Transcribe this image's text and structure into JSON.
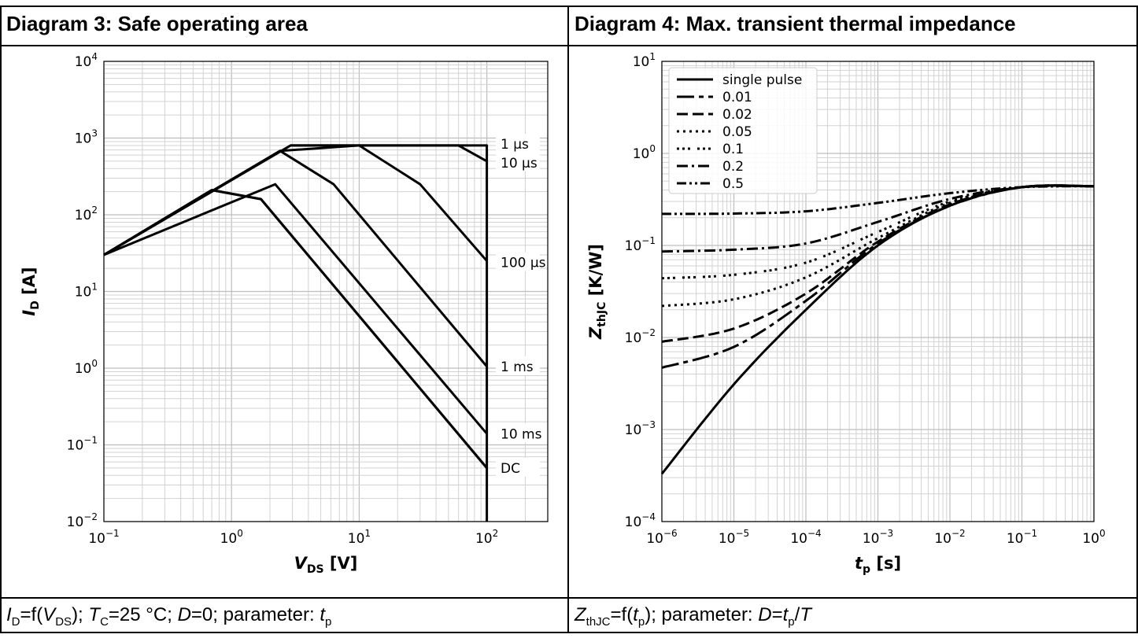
{
  "panels": {
    "left": {
      "title": "Diagram 3: Safe operating area",
      "caption": {
        "i": "I",
        "i_sub": "D",
        "f_open": "=f(",
        "v": "V",
        "v_sub": "DS",
        "rest1": "); ",
        "t": "T",
        "t_sub": "C",
        "rest2": "=25 °C; ",
        "d": "D",
        "rest3": "=0; parameter: ",
        "tp": "t",
        "tp_sub": "p"
      }
    },
    "right": {
      "title": "Diagram 4: Max. transient thermal impedance",
      "caption": {
        "z": "Z",
        "z_sub": "thJC",
        "f_open": "=f(",
        "t": "t",
        "t_sub": "p",
        "rest1": "); parameter: ",
        "d": "D",
        "eq": "=",
        "t2": "t",
        "t2_sub": "p",
        "slash": "/",
        "T": "T"
      }
    }
  },
  "chart_data": [
    {
      "type": "line",
      "xscale": "log",
      "yscale": "log",
      "xlim": [
        0.1,
        300
      ],
      "ylim": [
        0.01,
        10000
      ],
      "grid": true,
      "xlabel": "V_DS [V]",
      "ylabel": "I_D [A]",
      "xticks": [
        0.1,
        1,
        10,
        100
      ],
      "yticks": [
        0.01,
        0.1,
        1,
        10,
        100,
        1000,
        10000
      ],
      "series": [
        {
          "name": "1 µs",
          "x": [
            0.1,
            2.9,
            60,
            100
          ],
          "y": [
            30,
            800,
            800,
            500
          ]
        },
        {
          "name": "10 µs",
          "x": [
            0.1,
            2.4,
            10,
            30,
            100
          ],
          "y": [
            30,
            680,
            800,
            250,
            25
          ]
        },
        {
          "name": "100 µs",
          "x": [
            0.1,
            1.4,
            2.4,
            6.3,
            100
          ],
          "y": [
            30,
            400,
            680,
            250,
            1.05
          ]
        },
        {
          "name": "1 ms",
          "x": [
            0.1,
            2.2,
            100
          ],
          "y": [
            30,
            250,
            0.14
          ]
        },
        {
          "name": "10 ms",
          "x": [
            0.1,
            0.7,
            1.7,
            100
          ],
          "y": [
            30,
            210,
            160,
            0.05
          ]
        },
        {
          "name": "DC",
          "x": [
            0.1,
            0.7,
            1.7,
            100
          ],
          "y": [
            30,
            210,
            160,
            0.05
          ]
        }
      ],
      "boundary": {
        "x": [
          2.9,
          100,
          100,
          100
        ],
        "y": [
          800,
          800,
          0.05,
          0.01
        ]
      },
      "annotations": [
        "1 µs",
        "10 µs",
        "100 µs",
        "1 ms",
        "10 ms",
        "DC"
      ]
    },
    {
      "type": "line",
      "xscale": "log",
      "yscale": "log",
      "xlim": [
        1e-06,
        1
      ],
      "ylim": [
        0.0001,
        10
      ],
      "grid": true,
      "xlabel": "t_p [s]",
      "ylabel": "Z_thJC [K/W]",
      "xticks": [
        1e-06,
        1e-05,
        0.0001,
        0.001,
        0.01,
        0.1,
        1
      ],
      "yticks": [
        0.0001,
        0.001,
        0.01,
        0.1,
        1,
        10
      ],
      "legend": "top-left",
      "series": [
        {
          "name": "single pulse",
          "x": [
            1e-06,
            1e-05,
            0.0001,
            0.001,
            0.01,
            0.1,
            1
          ],
          "y": [
            0.00033,
            0.0031,
            0.02,
            0.1,
            0.27,
            0.43,
            0.44
          ]
        },
        {
          "name": "0.01",
          "x": [
            1e-06,
            1e-05,
            0.0001,
            0.001,
            0.01,
            0.1,
            1
          ],
          "y": [
            0.0047,
            0.0079,
            0.025,
            0.105,
            0.27,
            0.43,
            0.44
          ]
        },
        {
          "name": "0.02",
          "x": [
            1e-06,
            1e-05,
            0.0001,
            0.001,
            0.01,
            0.1,
            1
          ],
          "y": [
            0.009,
            0.0125,
            0.03,
            0.11,
            0.28,
            0.43,
            0.44
          ]
        },
        {
          "name": "0.05",
          "x": [
            1e-06,
            1e-05,
            0.0001,
            0.001,
            0.01,
            0.1,
            1
          ],
          "y": [
            0.022,
            0.026,
            0.045,
            0.12,
            0.29,
            0.43,
            0.44
          ]
        },
        {
          "name": "0.1",
          "x": [
            1e-06,
            1e-05,
            0.0001,
            0.001,
            0.01,
            0.1,
            1
          ],
          "y": [
            0.044,
            0.048,
            0.065,
            0.14,
            0.3,
            0.43,
            0.44
          ]
        },
        {
          "name": "0.2",
          "x": [
            1e-06,
            1e-05,
            0.0001,
            0.001,
            0.01,
            0.1,
            1
          ],
          "y": [
            0.086,
            0.09,
            0.105,
            0.18,
            0.32,
            0.43,
            0.44
          ]
        },
        {
          "name": "0.5",
          "x": [
            1e-06,
            1e-05,
            0.0001,
            0.001,
            0.01,
            0.1,
            1
          ],
          "y": [
            0.22,
            0.222,
            0.235,
            0.29,
            0.37,
            0.43,
            0.44
          ]
        }
      ]
    }
  ]
}
